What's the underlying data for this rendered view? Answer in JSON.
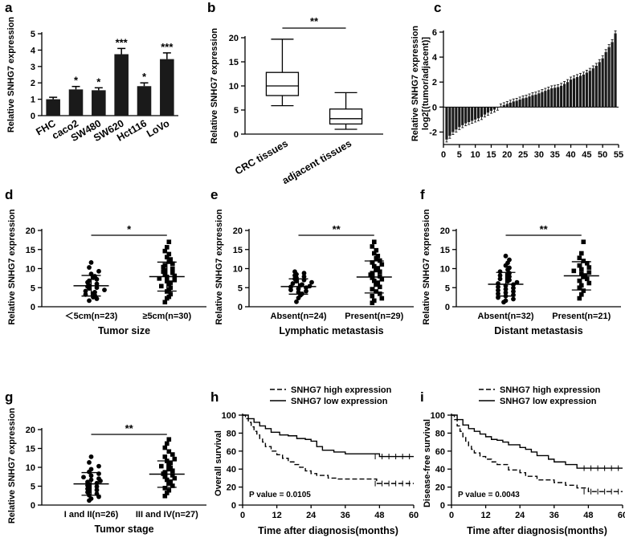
{
  "chart_data": [
    {
      "id": "a",
      "panel_label": "a",
      "type": "bar",
      "ylabel": "Relative SNHG7 expression",
      "ylim": [
        0,
        5
      ],
      "yticks": [
        0,
        1,
        2,
        3,
        4,
        5
      ],
      "categories": [
        "FHC",
        "caco2",
        "SW480",
        "SW620",
        "Hct116",
        "LoVo"
      ],
      "values": [
        1.0,
        1.6,
        1.55,
        3.75,
        1.8,
        3.45
      ],
      "errors": [
        0.12,
        0.18,
        0.15,
        0.35,
        0.2,
        0.38
      ],
      "stars": [
        "",
        "*",
        "*",
        "***",
        "*",
        "***"
      ],
      "color": "#1a1a1a"
    },
    {
      "id": "b",
      "panel_label": "b",
      "type": "box",
      "ylabel": "Relative SNHG7 expression",
      "ylim": [
        0,
        20
      ],
      "yticks": [
        0,
        5,
        10,
        15,
        20
      ],
      "categories": [
        "CRC tissues",
        "adjacent tissues"
      ],
      "boxes": [
        {
          "min": 5.9,
          "q1": 8.0,
          "median": 10.0,
          "q3": 12.8,
          "max": 19.7
        },
        {
          "min": 1.0,
          "q1": 2.1,
          "median": 3.2,
          "q3": 5.2,
          "max": 8.6
        }
      ],
      "significance": "**"
    },
    {
      "id": "c",
      "panel_label": "c",
      "type": "bar",
      "ylabel": "Relative SNHG7 expression",
      "ylabel2": "log2[(tumor/adjacent)]",
      "ylim": [
        -3,
        6
      ],
      "yticks": [
        -2,
        0,
        2,
        4,
        6
      ],
      "xlim": [
        0,
        55
      ],
      "xticks": [
        0,
        5,
        10,
        15,
        20,
        25,
        30,
        35,
        40,
        45,
        50,
        55
      ],
      "values": [
        -2.6,
        -2.3,
        -2.0,
        -1.8,
        -1.6,
        -1.45,
        -1.3,
        -1.2,
        -1.1,
        -1.0,
        -0.9,
        -0.8,
        -0.6,
        -0.45,
        -0.3,
        -0.2,
        -0.05,
        0.05,
        0.15,
        0.25,
        0.35,
        0.45,
        0.5,
        0.6,
        0.7,
        0.75,
        0.85,
        0.95,
        1.0,
        1.1,
        1.2,
        1.3,
        1.4,
        1.5,
        1.55,
        1.6,
        1.7,
        1.85,
        2.0,
        2.2,
        2.3,
        2.4,
        2.5,
        2.6,
        2.75,
        2.9,
        3.1,
        3.3,
        3.6,
        3.9,
        4.4,
        4.8,
        5.2,
        5.9
      ],
      "color": "#1a1a1a"
    },
    {
      "id": "d",
      "panel_label": "d",
      "type": "scatter",
      "ylabel": "Relative SNHG7 expression",
      "ylim": [
        0,
        20
      ],
      "yticks": [
        0,
        5,
        10,
        15,
        20
      ],
      "xlabel": "Tumor size",
      "categories": [
        "＜5cm(n=23)",
        "≥5cm(n=30)"
      ],
      "means": [
        5.5,
        7.9
      ],
      "sds": [
        2.7,
        3.8
      ],
      "significance": "*",
      "points": [
        [
          1.6,
          2.1,
          2.5,
          3.0,
          3.2,
          3.5,
          3.8,
          4.1,
          4.4,
          4.8,
          5.0,
          5.3,
          5.6,
          6.0,
          6.4,
          6.8,
          7.2,
          7.6,
          8.0,
          8.6,
          9.3,
          10.3,
          11.6
        ],
        [
          1.2,
          2.2,
          2.6,
          3.3,
          4.0,
          4.5,
          5.0,
          5.4,
          5.9,
          6.3,
          6.7,
          7.0,
          7.4,
          7.8,
          8.1,
          8.5,
          8.9,
          9.2,
          9.6,
          10.0,
          10.4,
          10.9,
          11.3,
          11.8,
          12.4,
          13.0,
          13.8,
          14.6,
          15.6,
          17.0
        ]
      ]
    },
    {
      "id": "e",
      "panel_label": "e",
      "type": "scatter",
      "ylabel": "Relative SNHG7 expression",
      "ylim": [
        0,
        20
      ],
      "yticks": [
        0,
        5,
        10,
        15,
        20
      ],
      "xlabel": "Lymphatic metastasis",
      "categories": [
        "Absent(n=24)",
        "Present(n=29)"
      ],
      "means": [
        5.3,
        7.8
      ],
      "sds": [
        2.0,
        4.2
      ],
      "significance": "**",
      "points": [
        [
          1.3,
          2.3,
          3.0,
          3.4,
          3.8,
          4.1,
          4.4,
          4.7,
          5.0,
          5.2,
          5.4,
          5.6,
          5.8,
          6.1,
          6.4,
          6.7,
          7.0,
          7.3,
          7.6,
          7.9,
          8.2,
          8.5,
          8.8,
          9.2
        ],
        [
          1.0,
          1.6,
          2.2,
          2.8,
          3.4,
          4.0,
          4.6,
          5.2,
          5.8,
          6.3,
          6.8,
          7.2,
          7.6,
          8.0,
          8.4,
          8.8,
          9.2,
          9.6,
          10.1,
          10.6,
          11.1,
          11.6,
          12.1,
          12.7,
          13.3,
          14.0,
          14.8,
          15.8,
          17.0
        ]
      ]
    },
    {
      "id": "f",
      "panel_label": "f",
      "type": "scatter",
      "ylabel": "Relative SNHG7 expression",
      "ylim": [
        0,
        20
      ],
      "yticks": [
        0,
        5,
        10,
        15,
        20
      ],
      "xlabel": "Distant metastasis",
      "categories": [
        "Absent(n=32)",
        "Present(n=21)"
      ],
      "means": [
        5.9,
        8.1
      ],
      "sds": [
        3.1,
        3.7
      ],
      "significance": "**",
      "points": [
        [
          1.2,
          1.6,
          2.0,
          2.4,
          2.8,
          3.1,
          3.4,
          3.7,
          4.0,
          4.3,
          4.6,
          4.9,
          5.2,
          5.5,
          5.8,
          6.1,
          6.4,
          6.7,
          7.0,
          7.3,
          7.6,
          7.9,
          8.2,
          8.5,
          8.8,
          9.2,
          9.7,
          10.2,
          10.8,
          11.5,
          12.3,
          13.3
        ],
        [
          2.2,
          3.2,
          4.2,
          5.0,
          5.6,
          6.2,
          6.8,
          7.3,
          7.8,
          8.2,
          8.6,
          9.0,
          9.4,
          9.8,
          10.3,
          10.8,
          11.4,
          12.0,
          12.8,
          14.0,
          17.0
        ]
      ]
    },
    {
      "id": "g",
      "panel_label": "g",
      "type": "scatter",
      "ylabel": "Relative SNHG7 expression",
      "ylim": [
        0,
        20
      ],
      "yticks": [
        0,
        5,
        10,
        15,
        20
      ],
      "xlabel": "Tumor stage",
      "categories": [
        "I and II(n=26)",
        "III and IV(n=27)"
      ],
      "means": [
        5.6,
        8.2
      ],
      "sds": [
        3.0,
        3.5
      ],
      "significance": "**",
      "points": [
        [
          1.2,
          1.7,
          2.2,
          2.6,
          3.0,
          3.4,
          3.7,
          4.0,
          4.3,
          4.6,
          4.9,
          5.2,
          5.5,
          5.8,
          6.1,
          6.4,
          6.7,
          7.0,
          7.4,
          7.8,
          8.3,
          8.8,
          9.5,
          10.3,
          11.3,
          12.8
        ],
        [
          2.4,
          3.2,
          3.9,
          4.5,
          5.1,
          5.7,
          6.2,
          6.7,
          7.1,
          7.5,
          7.9,
          8.3,
          8.7,
          9.1,
          9.5,
          9.9,
          10.3,
          10.7,
          11.2,
          11.7,
          12.2,
          12.8,
          13.4,
          14.2,
          15.2,
          16.3,
          17.4
        ]
      ]
    },
    {
      "id": "h",
      "panel_label": "h",
      "type": "line",
      "ylabel": "Overall survival",
      "xlabel": "Time after diagnosis(months)",
      "ylim": [
        0,
        100
      ],
      "yticks": [
        0,
        20,
        40,
        60,
        80,
        100
      ],
      "xlim": [
        0,
        60
      ],
      "xticks": [
        0,
        12,
        24,
        36,
        48,
        60
      ],
      "pvalue": "P value = 0.0105",
      "series": [
        {
          "name": "SNHG7 high expression",
          "style": "dashed",
          "x": [
            0,
            1,
            2,
            3,
            4,
            5,
            6,
            7,
            8,
            10,
            12,
            14,
            16,
            18,
            20,
            22,
            24,
            26,
            30,
            33,
            36,
            40,
            47,
            53,
            60
          ],
          "y": [
            100,
            96,
            92,
            87,
            82,
            78,
            74,
            70,
            65,
            60,
            56,
            52,
            48,
            45,
            42,
            38,
            35,
            33,
            30,
            29,
            29,
            29,
            24,
            24,
            24
          ]
        },
        {
          "name": "SNHG7 low expression",
          "style": "solid",
          "x": [
            0,
            2,
            4,
            6,
            8,
            10,
            13,
            16,
            19,
            22,
            24,
            26,
            28,
            32,
            36,
            42,
            48,
            60
          ],
          "y": [
            100,
            96,
            92,
            88,
            85,
            81,
            78,
            77,
            74,
            73,
            71,
            65,
            61,
            59,
            57,
            57,
            54,
            54
          ]
        }
      ]
    },
    {
      "id": "i",
      "panel_label": "i",
      "type": "line",
      "ylabel": "Disease-free survival",
      "xlabel": "Time after diagnosis(months)",
      "ylim": [
        0,
        100
      ],
      "yticks": [
        0,
        20,
        40,
        60,
        80,
        100
      ],
      "xlim": [
        0,
        60
      ],
      "xticks": [
        0,
        12,
        24,
        36,
        48,
        60
      ],
      "pvalue": "P value = 0.0043",
      "series": [
        {
          "name": "SNHG7 high expression",
          "style": "dashed",
          "x": [
            0,
            1,
            2,
            3,
            4,
            5,
            6,
            7,
            8,
            10,
            12,
            14,
            16,
            20,
            24,
            26,
            30,
            36,
            40,
            44,
            48,
            60
          ],
          "y": [
            100,
            95,
            88,
            82,
            76,
            71,
            66,
            62,
            58,
            54,
            51,
            48,
            45,
            39,
            36,
            32,
            28,
            25,
            22,
            19,
            15,
            15
          ]
        },
        {
          "name": "SNHG7 low expression",
          "style": "solid",
          "x": [
            0,
            2,
            4,
            6,
            8,
            10,
            12,
            14,
            16,
            18,
            20,
            24,
            26,
            28,
            30,
            34,
            36,
            40,
            44,
            60
          ],
          "y": [
            100,
            95,
            89,
            85,
            82,
            79,
            76,
            73,
            72,
            70,
            67,
            64,
            62,
            59,
            55,
            51,
            48,
            45,
            41,
            41
          ]
        }
      ]
    }
  ]
}
